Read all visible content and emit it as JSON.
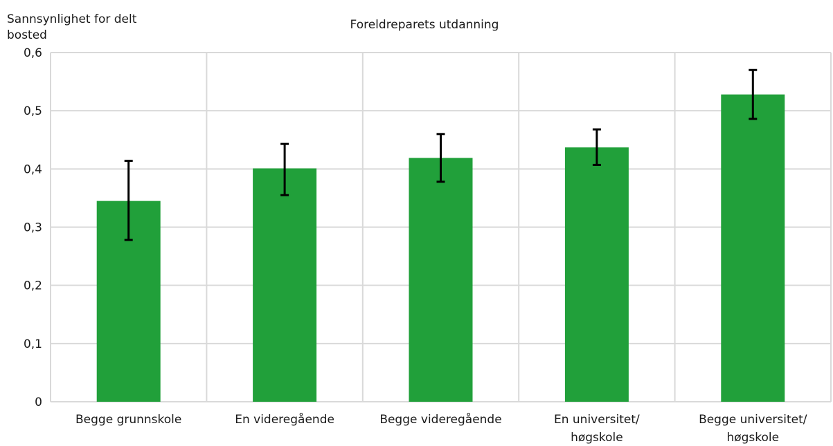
{
  "chart_data": {
    "type": "bar",
    "title": "Foreldreparets utdanning",
    "ylabel": [
      "Sannsynlighet for delt",
      "bosted"
    ],
    "xlabel": "",
    "categories": [
      [
        "Begge grunnskole"
      ],
      [
        "En videregående"
      ],
      [
        "Begge videregående"
      ],
      [
        "En universitet/",
        "høgskole"
      ],
      [
        "Begge universitet/",
        "høgskole"
      ]
    ],
    "values": [
      0.345,
      0.401,
      0.419,
      0.437,
      0.528
    ],
    "error_low": [
      0.278,
      0.355,
      0.378,
      0.407,
      0.486
    ],
    "error_high": [
      0.414,
      0.443,
      0.46,
      0.468,
      0.57
    ],
    "ylim": [
      0,
      0.6
    ],
    "yticks": [
      "0",
      "0,1",
      "0,2",
      "0,3",
      "0,4",
      "0,5",
      "0,6"
    ],
    "grid": true,
    "bar_color": "#21a03a",
    "error_bar_color": "#000000",
    "grid_color": "#d9d9d9"
  }
}
